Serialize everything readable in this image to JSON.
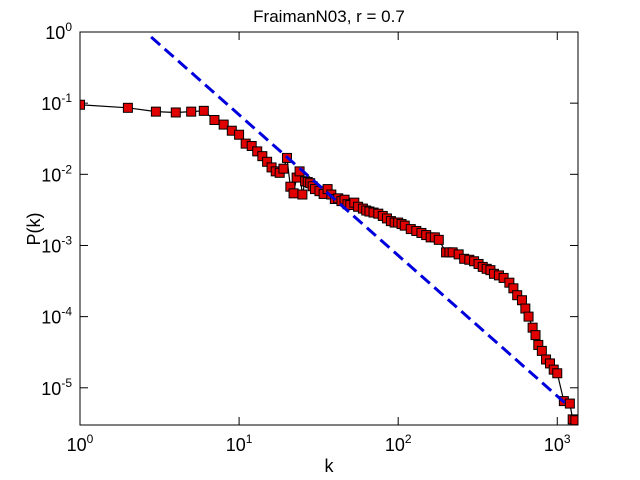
{
  "chart_data": {
    "type": "line",
    "title": "FraimanN03, r = 0.7",
    "x_label": "k",
    "y_label": "P(k)",
    "xscale": "log",
    "yscale": "log",
    "xlim": [
      1,
      1350
    ],
    "ylim": [
      3e-06,
      1
    ],
    "xticks": [
      {
        "value": 1,
        "label": "10^0"
      },
      {
        "value": 10,
        "label": "10^1"
      },
      {
        "value": 100,
        "label": "10^2"
      },
      {
        "value": 1000,
        "label": "10^3"
      }
    ],
    "yticks": [
      {
        "value": 1e-05,
        "label": "10^-5"
      },
      {
        "value": 0.0001,
        "label": "10^-4"
      },
      {
        "value": 0.001,
        "label": "10^-3"
      },
      {
        "value": 0.01,
        "label": "10^-2"
      },
      {
        "value": 0.1,
        "label": "10^-1"
      },
      {
        "value": 1,
        "label": "10^0"
      }
    ],
    "series": [
      {
        "color": "#000000",
        "marker_color": "#e00000",
        "marker": "square",
        "style": "solid",
        "x": [
          1,
          2,
          3,
          4,
          5,
          6,
          7,
          8,
          9,
          10,
          11,
          12,
          13,
          14,
          15,
          16,
          17,
          18,
          19,
          20,
          21,
          22,
          23,
          24,
          25,
          26,
          27,
          28,
          29,
          30,
          32,
          34,
          36,
          38,
          40,
          42,
          44,
          46,
          48,
          50,
          53,
          56,
          60,
          63,
          66,
          70,
          75,
          80,
          85,
          90,
          95,
          100,
          105,
          110,
          120,
          130,
          140,
          150,
          160,
          170,
          180,
          200,
          210,
          220,
          240,
          260,
          280,
          300,
          320,
          340,
          360,
          380,
          400,
          430,
          460,
          500,
          530,
          560,
          600,
          630,
          660,
          700,
          730,
          760,
          800,
          850,
          900,
          950,
          1000,
          1100,
          1200,
          1250,
          1300
        ],
        "values": [
          0.095,
          0.086,
          0.076,
          0.074,
          0.076,
          0.078,
          0.058,
          0.05,
          0.041,
          0.036,
          0.027,
          0.025,
          0.021,
          0.018,
          0.015,
          0.0125,
          0.011,
          0.0105,
          0.012,
          0.017,
          0.0067,
          0.0054,
          0.009,
          0.011,
          0.0052,
          0.008,
          0.0078,
          0.0075,
          0.0068,
          0.0062,
          0.0058,
          0.0053,
          0.0062,
          0.0052,
          0.0045,
          0.0046,
          0.0042,
          0.0044,
          0.0038,
          0.0037,
          0.004,
          0.0035,
          0.0033,
          0.0031,
          0.003,
          0.0029,
          0.0028,
          0.0026,
          0.0024,
          0.0022,
          0.0021,
          0.0021,
          0.002,
          0.0019,
          0.0017,
          0.0016,
          0.0015,
          0.0014,
          0.0013,
          0.0013,
          0.0012,
          0.0008,
          0.0008,
          0.0008,
          0.00075,
          0.00065,
          0.00063,
          0.0006,
          0.00055,
          0.0005,
          0.00047,
          0.00045,
          0.0004,
          0.00038,
          0.00035,
          0.0003,
          0.00025,
          0.0002,
          0.00017,
          0.00013,
          0.0001,
          7e-05,
          5.5e-05,
          4e-05,
          3.3e-05,
          2.5e-05,
          2.2e-05,
          1.8e-05,
          1.6e-05,
          6.5e-06,
          6e-06,
          3.6e-06,
          3.5e-06
        ]
      },
      {
        "color": "#0000dd",
        "style": "dashed",
        "x": [
          2.8,
          1150
        ],
        "values": [
          0.85,
          5.8e-06
        ]
      }
    ]
  }
}
